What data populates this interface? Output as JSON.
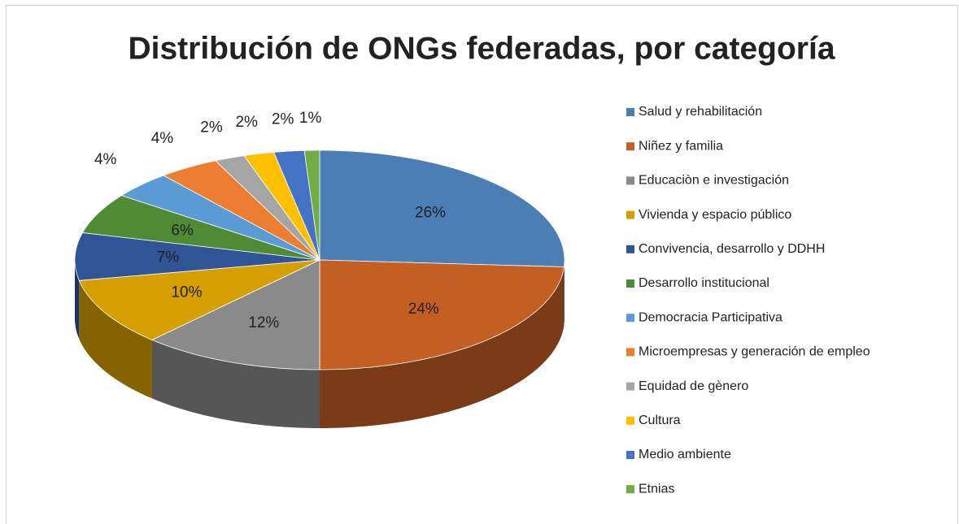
{
  "chart_data": {
    "type": "pie3d",
    "title": "Distribución de ONGs federadas, por categoría",
    "categories": [
      "Salud y rehabilitación",
      "Niñez y familia",
      "Educaciòn e investigación",
      "Vivienda y espacio público",
      "Convivencia, desarrollo y DDHH",
      "Desarrollo institucional",
      "Democracia Participativa",
      "Microempresas y generación de empleo",
      "Equidad de gènero",
      "Cultura",
      "Medio ambiente",
      "Etnias"
    ],
    "values": [
      26,
      24,
      12,
      10,
      7,
      6,
      4,
      4,
      2,
      2,
      2,
      1
    ],
    "value_labels": [
      "26%",
      "24%",
      "12%",
      "10%",
      "7%",
      "6%",
      "4%",
      "4%",
      "2%",
      "2%",
      "2%",
      "1%"
    ],
    "colors": [
      "#4a7eb4",
      "#c45f24",
      "#8a8a8a",
      "#d69f00",
      "#2f5597",
      "#4f8a34",
      "#5b9bd5",
      "#ed7d31",
      "#a5a5a5",
      "#ffc000",
      "#4472c4",
      "#70ad47"
    ],
    "legend": "right"
  }
}
